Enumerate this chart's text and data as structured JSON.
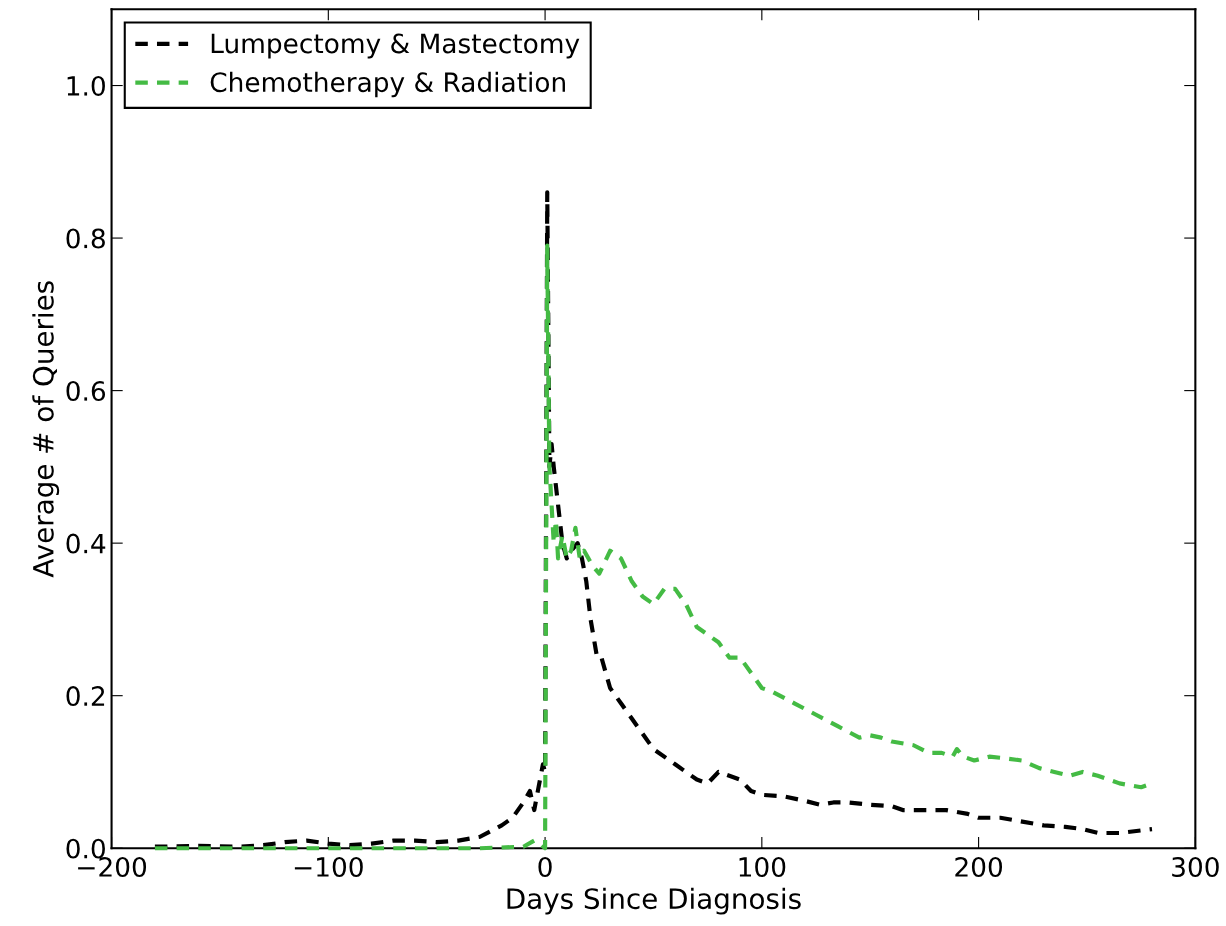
{
  "chart_data": {
    "type": "line",
    "xlabel": "Days Since Diagnosis",
    "ylabel": "Average # of Queries",
    "xlim": [
      -200,
      300
    ],
    "xticks": [
      {
        "value": -200,
        "label": "−200"
      },
      {
        "value": -100,
        "label": "−100"
      },
      0,
      100,
      200,
      300
    ],
    "ylim": [
      0,
      1.1
    ],
    "yticks": [
      {
        "value": 0,
        "label": "0.0"
      },
      0.2,
      0.4,
      0.6,
      0.8,
      {
        "value": 1.0,
        "label": "1.0"
      }
    ],
    "grid": false,
    "legend": "top left",
    "line_style": "dashed",
    "marker": "none",
    "series": [
      {
        "name": "Lumpectomy & Mastectomy",
        "color": "#000000",
        "x": [
          -180,
          -160,
          -140,
          -130,
          -120,
          -110,
          -100,
          -90,
          -80,
          -70,
          -60,
          -50,
          -40,
          -30,
          -20,
          -15,
          -10,
          -7,
          -5,
          -3,
          -1,
          0,
          1,
          2,
          3,
          4,
          6,
          8,
          10,
          12,
          15,
          17,
          19,
          21,
          24,
          26,
          30,
          35,
          40,
          45,
          50,
          60,
          70,
          75,
          80,
          85,
          90,
          95,
          100,
          110,
          120,
          127,
          133,
          140,
          150,
          160,
          165,
          175,
          185,
          195,
          200,
          210,
          230,
          240,
          248,
          255,
          265,
          280
        ],
        "values": [
          0.002,
          0.003,
          0.002,
          0.004,
          0.008,
          0.01,
          0.006,
          0.004,
          0.006,
          0.01,
          0.01,
          0.008,
          0.01,
          0.015,
          0.03,
          0.04,
          0.06,
          0.075,
          0.05,
          0.08,
          0.11,
          0.1,
          0.86,
          0.5,
          0.53,
          0.5,
          0.45,
          0.4,
          0.38,
          0.39,
          0.4,
          0.38,
          0.35,
          0.3,
          0.25,
          0.25,
          0.21,
          0.19,
          0.17,
          0.15,
          0.13,
          0.11,
          0.09,
          0.085,
          0.1,
          0.095,
          0.09,
          0.075,
          0.07,
          0.068,
          0.062,
          0.057,
          0.06,
          0.06,
          0.057,
          0.055,
          0.05,
          0.05,
          0.05,
          0.045,
          0.04,
          0.04,
          0.03,
          0.028,
          0.025,
          0.02,
          0.02,
          0.025
        ]
      },
      {
        "name": "Chemotherapy & Radiation",
        "color": "#44bb44",
        "x": [
          -180,
          -150,
          -120,
          -90,
          -60,
          -30,
          -10,
          -5,
          -2,
          0,
          1,
          2,
          3,
          4,
          5,
          6,
          8,
          10,
          12,
          14,
          16,
          18,
          22,
          25,
          30,
          35,
          40,
          45,
          50,
          55,
          60,
          65,
          70,
          80,
          85,
          90,
          95,
          100,
          105,
          115,
          125,
          135,
          145,
          150,
          155,
          160,
          170,
          177,
          183,
          188,
          190,
          193,
          198,
          205,
          212,
          220,
          228,
          235,
          242,
          248,
          255,
          265,
          275,
          280
        ],
        "values": [
          0,
          0,
          0,
          0,
          0,
          0,
          0.002,
          0.01,
          0.005,
          0,
          0.79,
          0.5,
          0.45,
          0.4,
          0.43,
          0.38,
          0.41,
          0.38,
          0.39,
          0.42,
          0.38,
          0.39,
          0.37,
          0.36,
          0.39,
          0.38,
          0.35,
          0.33,
          0.32,
          0.34,
          0.34,
          0.32,
          0.29,
          0.27,
          0.25,
          0.25,
          0.23,
          0.21,
          0.205,
          0.19,
          0.175,
          0.16,
          0.145,
          0.148,
          0.145,
          0.14,
          0.135,
          0.125,
          0.125,
          0.12,
          0.13,
          0.12,
          0.115,
          0.12,
          0.118,
          0.115,
          0.105,
          0.1,
          0.095,
          0.1,
          0.095,
          0.085,
          0.08,
          0.085
        ]
      }
    ]
  }
}
